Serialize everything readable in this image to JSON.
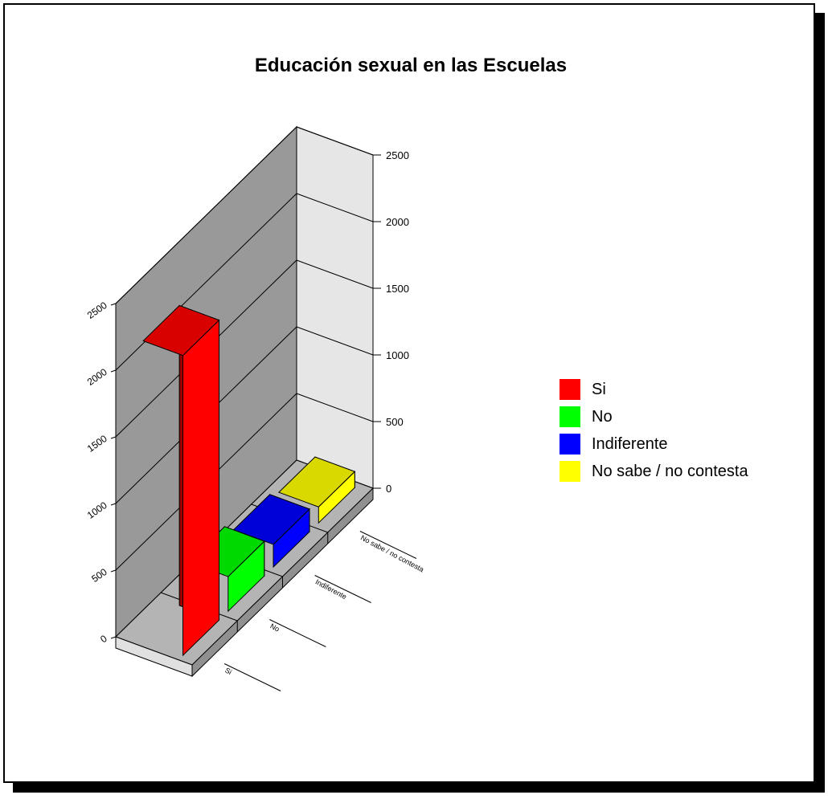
{
  "chart_data": {
    "type": "bar",
    "title": "Educación sexual en las Escuelas",
    "categories": [
      "Si",
      "No",
      "Indiferente",
      "No sabe / no contesta"
    ],
    "values": [
      2250,
      260,
      170,
      120
    ],
    "colors": [
      "#ff0000",
      "#00ff00",
      "#0000ff",
      "#ffff00"
    ],
    "ylim": [
      0,
      2500
    ],
    "yticks": [
      0,
      500,
      1000,
      1500,
      2000,
      2500
    ],
    "grid": true,
    "view": "3d",
    "legend_position": "right"
  }
}
